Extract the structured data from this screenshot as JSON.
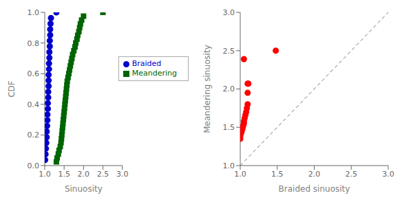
{
  "chart_data": [
    {
      "type": "scatter",
      "xlabel": "Sinuosity",
      "ylabel": "CDF",
      "xlim": [
        1.0,
        3.0
      ],
      "ylim": [
        0.0,
        1.0
      ],
      "xticks": [
        {
          "value": 1.0,
          "label": "1.0"
        },
        {
          "value": 1.5,
          "label": "1.5"
        },
        {
          "value": 2.0,
          "label": "2.0"
        },
        {
          "value": 2.5,
          "label": "2.5"
        },
        {
          "value": 3.0,
          "label": "3.0"
        }
      ],
      "yticks": [
        {
          "value": 0.0,
          "label": "0.0"
        },
        {
          "value": 0.2,
          "label": "0.2"
        },
        {
          "value": 0.4,
          "label": "0.4"
        },
        {
          "value": 0.6,
          "label": "0.6"
        },
        {
          "value": 0.8,
          "label": "0.8"
        },
        {
          "value": 1.0,
          "label": "1.0"
        }
      ],
      "grid": false,
      "legend": "upper right",
      "series": [
        {
          "name": "Braided",
          "type": "scatter",
          "color": "#0000cc",
          "marker": "circle",
          "x": [
            1.01,
            1.02,
            1.03,
            1.04,
            1.05,
            1.05,
            1.06,
            1.07,
            1.07,
            1.08,
            1.08,
            1.09,
            1.09,
            1.1,
            1.1,
            1.1,
            1.11,
            1.11,
            1.12,
            1.12,
            1.13,
            1.13,
            1.14,
            1.14,
            1.15,
            1.16,
            1.3
          ],
          "values": [
            0.037037037037,
            0.074074074074,
            0.111111111111,
            0.148148148148,
            0.185185185185,
            0.222222222222,
            0.259259259259,
            0.296296296296,
            0.333333333333,
            0.37037037037,
            0.407407407407,
            0.444444444444,
            0.481481481481,
            0.518518518519,
            0.555555555556,
            0.592592592593,
            0.62962962963,
            0.666666666667,
            0.703703703704,
            0.740740740741,
            0.777777777778,
            0.814814814815,
            0.851851851852,
            0.888888888889,
            0.925925925926,
            0.962962962963,
            1.0
          ]
        },
        {
          "name": "Meandering",
          "type": "scatter",
          "color": "#006400",
          "marker": "square",
          "x": [
            1.3,
            1.32,
            1.35,
            1.37,
            1.4,
            1.42,
            1.43,
            1.44,
            1.45,
            1.46,
            1.47,
            1.48,
            1.49,
            1.5,
            1.51,
            1.52,
            1.53,
            1.54,
            1.55,
            1.56,
            1.57,
            1.58,
            1.6,
            1.62,
            1.64,
            1.66,
            1.68,
            1.7,
            1.72,
            1.75,
            1.78,
            1.8,
            1.83,
            1.85,
            1.88,
            1.9,
            1.92,
            1.95,
            2.0,
            2.5
          ],
          "values": [
            0.025,
            0.05,
            0.075,
            0.1,
            0.125,
            0.15,
            0.175,
            0.2,
            0.225,
            0.25,
            0.275,
            0.3,
            0.325,
            0.35,
            0.375,
            0.4,
            0.425,
            0.45,
            0.475,
            0.5,
            0.525,
            0.55,
            0.575,
            0.6,
            0.625,
            0.65,
            0.675,
            0.7,
            0.725,
            0.75,
            0.775,
            0.8,
            0.825,
            0.85,
            0.875,
            0.9,
            0.925,
            0.95,
            0.975,
            1.0
          ]
        }
      ]
    },
    {
      "type": "scatter",
      "xlabel": "Braided sinuosity",
      "ylabel": "Meandering sinuosity",
      "xlim": [
        1.0,
        3.0
      ],
      "ylim": [
        1.0,
        3.0
      ],
      "xticks": [
        {
          "value": 1.0,
          "label": "1.0"
        },
        {
          "value": 1.5,
          "label": "1.5"
        },
        {
          "value": 2.0,
          "label": "2.0"
        },
        {
          "value": 2.5,
          "label": "2.5"
        },
        {
          "value": 3.0,
          "label": "3.0"
        }
      ],
      "yticks": [
        {
          "value": 1.0,
          "label": "1.0"
        },
        {
          "value": 1.5,
          "label": "1.5"
        },
        {
          "value": 2.0,
          "label": "2.0"
        },
        {
          "value": 2.5,
          "label": "2.5"
        },
        {
          "value": 3.0,
          "label": "3.0"
        }
      ],
      "grid": false,
      "series": [
        {
          "type": "scatter",
          "color": "#ff0000",
          "marker": "circle",
          "x": [
            1.0,
            1.0,
            1.0,
            1.01,
            1.01,
            1.02,
            1.02,
            1.03,
            1.03,
            1.04,
            1.05,
            1.05,
            1.06,
            1.07,
            1.08,
            1.09,
            1.1,
            1.1,
            1.11,
            1.48,
            1.05,
            1.1
          ],
          "values": [
            1.35,
            1.38,
            1.4,
            1.42,
            1.44,
            1.45,
            1.47,
            1.48,
            1.5,
            1.52,
            1.55,
            1.58,
            1.62,
            1.66,
            1.7,
            1.75,
            1.8,
            1.95,
            2.07,
            2.5,
            2.39,
            2.07
          ]
        },
        {
          "type": "line",
          "line_style": "dashed",
          "color": "#777777",
          "x": [
            1.0,
            3.0
          ],
          "values": [
            1.0,
            3.0
          ]
        }
      ]
    }
  ]
}
